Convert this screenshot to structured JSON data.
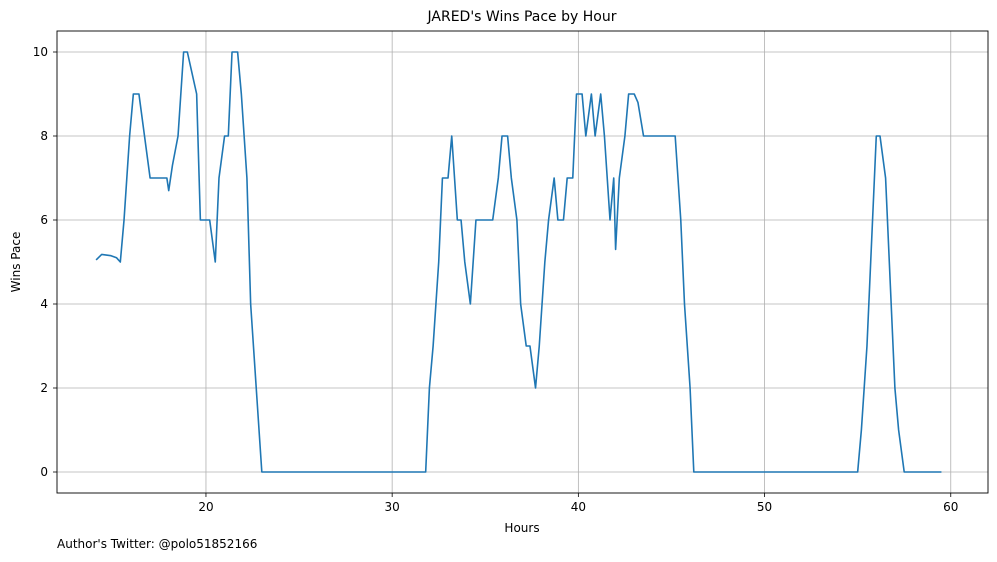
{
  "chart_data": {
    "type": "line",
    "title": "JARED's Wins Pace by Hour",
    "xlabel": "Hours",
    "ylabel": "Wins Pace",
    "xlim": [
      12,
      62
    ],
    "ylim": [
      -0.5,
      10.5
    ],
    "xticks": [
      20,
      30,
      40,
      50,
      60
    ],
    "yticks": [
      0,
      2,
      4,
      6,
      8,
      10
    ],
    "grid": true,
    "series_color": "#1f77b4",
    "series": [
      {
        "x": [
          14.1,
          14.4,
          14.9,
          15.2,
          15.4,
          15.6,
          15.9,
          16.1,
          16.4,
          16.7,
          17.0,
          17.2,
          17.4,
          17.7,
          17.9,
          18.0,
          18.2,
          18.5,
          18.8,
          19.0,
          19.2,
          19.5,
          19.7,
          19.9,
          20.2,
          20.5,
          20.7,
          21.0,
          21.2,
          21.4,
          21.7,
          21.9,
          22.2,
          22.4,
          22.7,
          23.0,
          23.5,
          25,
          27,
          29,
          31,
          31.8,
          32.0,
          32.2,
          32.5,
          32.7,
          33.0,
          33.2,
          33.5,
          33.7,
          33.9,
          34.2,
          34.5,
          34.7,
          35.0,
          35.2,
          35.4,
          35.7,
          35.9,
          36.2,
          36.4,
          36.7,
          36.9,
          37.2,
          37.4,
          37.7,
          37.9,
          38.2,
          38.4,
          38.7,
          38.9,
          39.2,
          39.4,
          39.7,
          39.9,
          40.2,
          40.4,
          40.7,
          40.9,
          41.2,
          41.4,
          41.7,
          41.9,
          42.0,
          42.2,
          42.5,
          42.7,
          43.0,
          43.2,
          43.5,
          43.7,
          44.0,
          44.2,
          44.5,
          44.7,
          45.0,
          45.2,
          45.5,
          45.7,
          46.0,
          46.2,
          46.4,
          47,
          50,
          53,
          55.0,
          55.2,
          55.5,
          55.7,
          56.0,
          56.2,
          56.5,
          56.7,
          57.0,
          57.2,
          57.5,
          57.7,
          58,
          59.5
        ],
        "y": [
          5.05,
          5.18,
          5.15,
          5.1,
          5.0,
          6.0,
          8.0,
          9.0,
          9.0,
          8.0,
          7.0,
          7.0,
          7.0,
          7.0,
          7.0,
          6.7,
          7.3,
          8.0,
          10.0,
          10.0,
          9.6,
          9.0,
          6.0,
          6.0,
          6.0,
          5.0,
          7.0,
          8.0,
          8.0,
          10.0,
          10.0,
          9.0,
          7.0,
          4.0,
          2.0,
          0.0,
          0.0,
          0.0,
          0.0,
          0.0,
          0.0,
          0.0,
          2.0,
          3.0,
          5.0,
          7.0,
          7.0,
          8.0,
          6.0,
          6.0,
          5.0,
          4.0,
          6.0,
          6.0,
          6.0,
          6.0,
          6.0,
          7.0,
          8.0,
          8.0,
          7.0,
          6.0,
          4.0,
          3.0,
          3.0,
          2.0,
          3.0,
          5.0,
          6.0,
          7.0,
          6.0,
          6.0,
          7.0,
          7.0,
          9.0,
          9.0,
          8.0,
          9.0,
          8.0,
          9.0,
          8.0,
          6.0,
          7.0,
          5.3,
          7.0,
          8.0,
          9.0,
          9.0,
          8.8,
          8.0,
          8.0,
          8.0,
          8.0,
          8.0,
          8.0,
          8.0,
          8.0,
          6.0,
          4.0,
          2.0,
          0.0,
          0.0,
          0.0,
          0.0,
          0.0,
          0.0,
          1.0,
          3.0,
          5.0,
          8.0,
          8.0,
          7.0,
          5.0,
          2.0,
          1.0,
          0.0,
          0.0,
          0.0,
          0.0
        ]
      }
    ]
  },
  "footer": {
    "credit": "Author's Twitter: @polo51852166"
  }
}
